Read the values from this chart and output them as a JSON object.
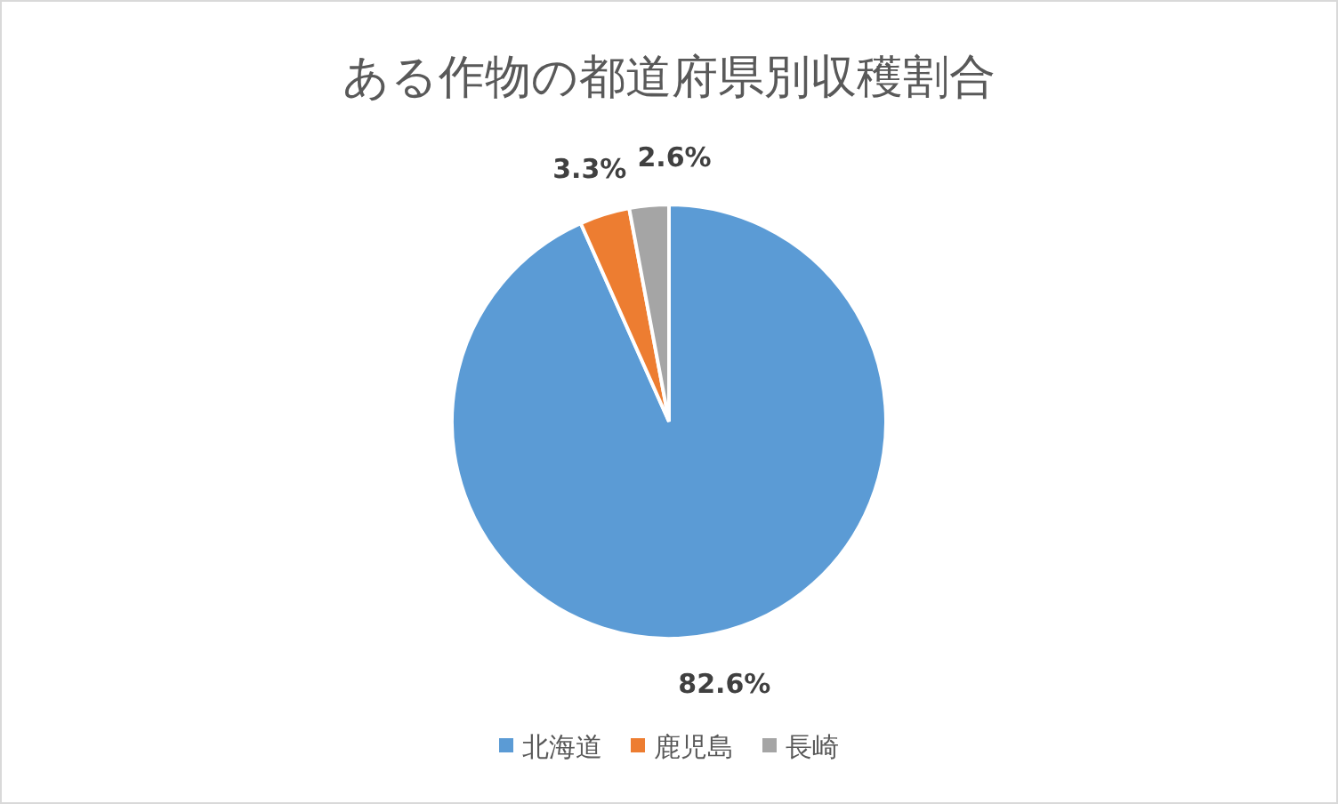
{
  "chart_data": {
    "type": "pie",
    "title": "ある作物の都道府県別収穫割合",
    "categories": [
      "北海道",
      "鹿児島",
      "長崎"
    ],
    "values": [
      82.6,
      3.3,
      2.6
    ],
    "colors": [
      "#5b9bd5",
      "#ed7d31",
      "#a5a5a5"
    ],
    "value_labels": [
      "82.6%",
      "3.3%",
      "2.6%"
    ],
    "legend": "bottom"
  }
}
